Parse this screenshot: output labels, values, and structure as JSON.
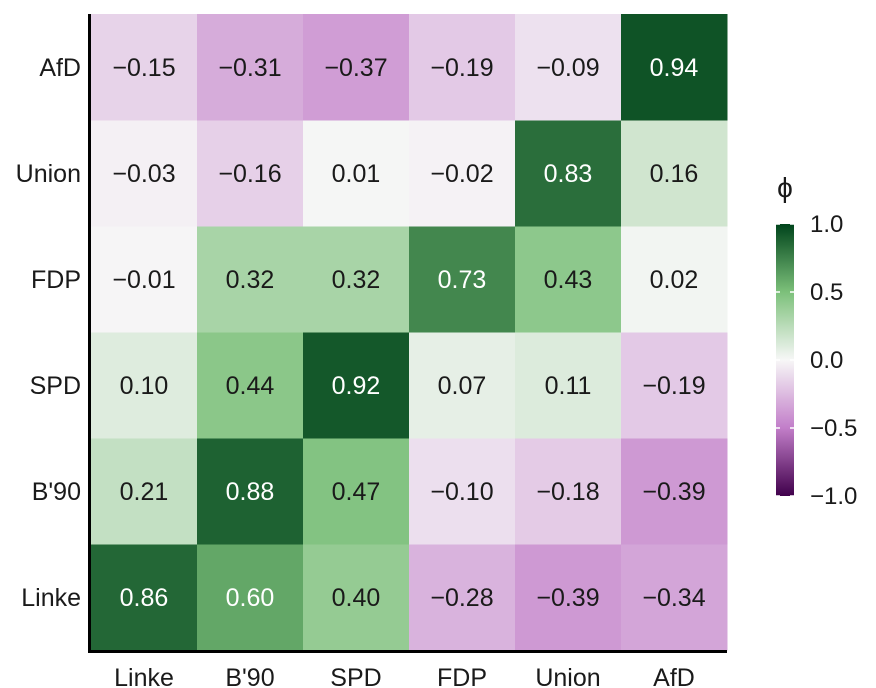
{
  "chart_data": {
    "type": "heatmap",
    "x_categories": [
      "Linke",
      "B'90",
      "SPD",
      "FDP",
      "Union",
      "AfD"
    ],
    "y_categories": [
      "Linke",
      "B'90",
      "SPD",
      "FDP",
      "Union",
      "AfD"
    ],
    "value_labels": [
      [
        "0.86",
        "0.60",
        "0.40",
        "−0.28",
        "−0.39",
        "−0.34"
      ],
      [
        "0.21",
        "0.88",
        "0.47",
        "−0.10",
        "−0.18",
        "−0.39"
      ],
      [
        "0.10",
        "0.44",
        "0.92",
        "0.07",
        "0.11",
        "−0.19"
      ],
      [
        "−0.01",
        "0.32",
        "0.32",
        "0.73",
        "0.43",
        "0.02"
      ],
      [
        "−0.03",
        "−0.16",
        "0.01",
        "−0.02",
        "0.83",
        "0.16"
      ],
      [
        "−0.15",
        "−0.31",
        "−0.37",
        "−0.19",
        "−0.09",
        "0.94"
      ]
    ],
    "values": [
      [
        0.86,
        0.6,
        0.4,
        -0.28,
        -0.39,
        -0.34
      ],
      [
        0.21,
        0.88,
        0.47,
        -0.1,
        -0.18,
        -0.39
      ],
      [
        0.1,
        0.44,
        0.92,
        0.07,
        0.11,
        -0.19
      ],
      [
        -0.01,
        0.32,
        0.32,
        0.73,
        0.43,
        0.02
      ],
      [
        -0.03,
        -0.16,
        0.01,
        -0.02,
        0.83,
        0.16
      ],
      [
        -0.15,
        -0.31,
        -0.37,
        -0.19,
        -0.09,
        0.94
      ]
    ],
    "color_scale": {
      "title": "ϕ",
      "range": [
        -1.0,
        1.0
      ],
      "ticks": [
        1.0,
        0.5,
        0.0,
        -0.5,
        -1.0
      ],
      "tick_labels": [
        "1.0",
        "0.5",
        "0.0",
        "−0.5",
        "−1.0"
      ],
      "colors": {
        "neg_end": "#40004b",
        "neg_mid": "#c27ec9",
        "center": "#f7f7f7",
        "pos_mid": "#7cc07a",
        "pos_end": "#00441b"
      }
    },
    "legend_position": "right",
    "grid": false
  }
}
